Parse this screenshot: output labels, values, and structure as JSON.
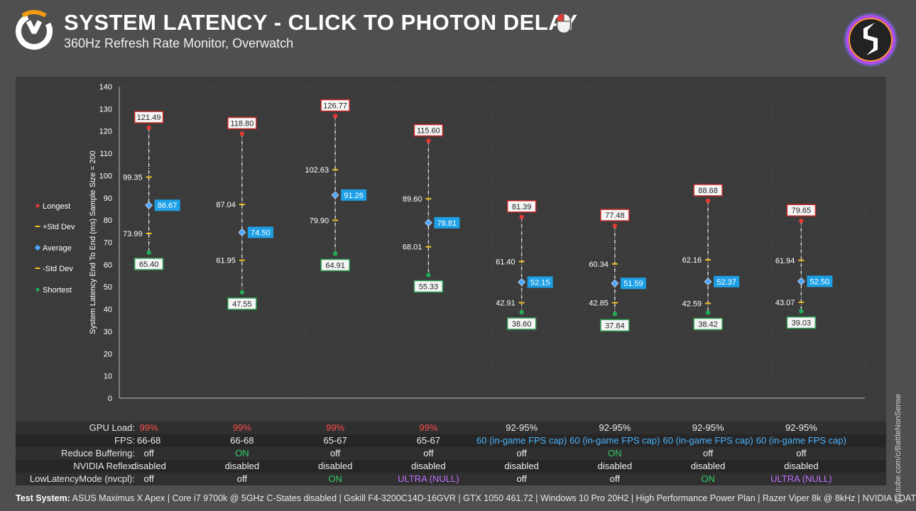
{
  "header": {
    "title": "SYSTEM LATENCY - CLICK TO PHOTON DELAY",
    "subtitle": "360Hz Refresh Rate Monitor, Overwatch"
  },
  "chart_data": {
    "type": "scatter",
    "ylabel": "System Latency End To End (ms) Sample Size = 200",
    "ylim": [
      0,
      140
    ],
    "yticks": [
      0,
      10,
      20,
      30,
      40,
      50,
      60,
      70,
      80,
      90,
      100,
      110,
      120,
      130,
      140
    ],
    "grid": true,
    "legend_position": "left",
    "legend": [
      {
        "name": "Longest",
        "color": "#e53935",
        "marker": "dot"
      },
      {
        "name": "+Std Dev",
        "color": "#f0c020",
        "marker": "dash"
      },
      {
        "name": "Average",
        "color": "#4da6ff",
        "marker": "diamond"
      },
      {
        "name": "-Std Dev",
        "color": "#f0c020",
        "marker": "dash"
      },
      {
        "name": "Shortest",
        "color": "#22aa55",
        "marker": "dot"
      }
    ],
    "series": [
      {
        "name": "Longest",
        "values": [
          "121.49",
          "118.80",
          "126.77",
          "115.60",
          "81.39",
          "77.48",
          "88.68",
          "79.65"
        ]
      },
      {
        "name": "+Std Dev",
        "values": [
          "99.35",
          "87.04",
          "102.63",
          "89.60",
          "61.40",
          "60.34",
          "62.16",
          "61.94"
        ]
      },
      {
        "name": "Average",
        "values": [
          "86.67",
          "74.50",
          "91.26",
          "78.81",
          "52.15",
          "51.59",
          "52.37",
          "52.50"
        ]
      },
      {
        "name": "-Std Dev",
        "values": [
          "73.99",
          "61.95",
          "79.90",
          "68.01",
          "42.91",
          "42.85",
          "42.59",
          "43.07"
        ]
      },
      {
        "name": "Shortest",
        "values": [
          "65.40",
          "47.55",
          "64.91",
          "55.33",
          "38.60",
          "37.84",
          "38.42",
          "39.03"
        ]
      }
    ]
  },
  "table": {
    "rows": [
      {
        "label": "GPU Load:",
        "cells": [
          {
            "parts": [
              {
                "text": "99%",
                "color": "red"
              }
            ]
          },
          {
            "parts": [
              {
                "text": "99%",
                "color": "red"
              }
            ]
          },
          {
            "parts": [
              {
                "text": "99%",
                "color": "red"
              }
            ]
          },
          {
            "parts": [
              {
                "text": "99%",
                "color": "red"
              }
            ]
          },
          {
            "parts": [
              {
                "text": "92-95%",
                "color": ""
              }
            ]
          },
          {
            "parts": [
              {
                "text": "92-95%",
                "color": ""
              }
            ]
          },
          {
            "parts": [
              {
                "text": "92-95%",
                "color": ""
              }
            ]
          },
          {
            "parts": [
              {
                "text": "92-95%",
                "color": ""
              }
            ]
          }
        ]
      },
      {
        "label": "FPS:",
        "cells": [
          {
            "parts": [
              {
                "text": "66-68",
                "color": ""
              }
            ]
          },
          {
            "parts": [
              {
                "text": "66-68",
                "color": ""
              }
            ]
          },
          {
            "parts": [
              {
                "text": "65-67",
                "color": ""
              }
            ]
          },
          {
            "parts": [
              {
                "text": "65-67",
                "color": ""
              }
            ]
          },
          {
            "parts": [
              {
                "text": "60 (in-game FPS cap)",
                "color": "blue"
              }
            ]
          },
          {
            "parts": [
              {
                "text": "60 (in-game FPS cap)",
                "color": "blue"
              }
            ]
          },
          {
            "parts": [
              {
                "text": "60 (in-game FPS cap)",
                "color": "blue"
              }
            ]
          },
          {
            "parts": [
              {
                "text": "60 (in-game FPS cap)",
                "color": "blue"
              }
            ]
          }
        ]
      },
      {
        "label": "Reduce Buffering:",
        "cells": [
          {
            "parts": [
              {
                "text": "off",
                "color": ""
              }
            ]
          },
          {
            "parts": [
              {
                "text": "ON",
                "color": "green"
              }
            ]
          },
          {
            "parts": [
              {
                "text": "off",
                "color": ""
              }
            ]
          },
          {
            "parts": [
              {
                "text": "off",
                "color": ""
              }
            ]
          },
          {
            "parts": [
              {
                "text": "off",
                "color": ""
              }
            ]
          },
          {
            "parts": [
              {
                "text": "ON",
                "color": "green"
              }
            ]
          },
          {
            "parts": [
              {
                "text": "off",
                "color": ""
              }
            ]
          },
          {
            "parts": [
              {
                "text": "off",
                "color": ""
              }
            ]
          }
        ]
      },
      {
        "label": "NVIDIA Reflex:",
        "cells": [
          {
            "parts": [
              {
                "text": "disabled",
                "color": ""
              }
            ]
          },
          {
            "parts": [
              {
                "text": "disabled",
                "color": ""
              }
            ]
          },
          {
            "parts": [
              {
                "text": "disabled",
                "color": ""
              }
            ]
          },
          {
            "parts": [
              {
                "text": "disabled",
                "color": ""
              }
            ]
          },
          {
            "parts": [
              {
                "text": "disabled",
                "color": ""
              }
            ]
          },
          {
            "parts": [
              {
                "text": "disabled",
                "color": ""
              }
            ]
          },
          {
            "parts": [
              {
                "text": "disabled",
                "color": ""
              }
            ]
          },
          {
            "parts": [
              {
                "text": "disabled",
                "color": ""
              }
            ]
          }
        ]
      },
      {
        "label": "LowLatencyMode (nvcpl):",
        "cells": [
          {
            "parts": [
              {
                "text": "off",
                "color": ""
              }
            ]
          },
          {
            "parts": [
              {
                "text": "off",
                "color": ""
              }
            ]
          },
          {
            "parts": [
              {
                "text": "ON",
                "color": "green"
              }
            ]
          },
          {
            "parts": [
              {
                "text": "ULTRA",
                "color": "purple"
              },
              {
                "text": " (NULL)",
                "color": "purple"
              }
            ]
          },
          {
            "parts": [
              {
                "text": "off",
                "color": ""
              }
            ]
          },
          {
            "parts": [
              {
                "text": "off",
                "color": ""
              }
            ]
          },
          {
            "parts": [
              {
                "text": "ON",
                "color": "green"
              }
            ]
          },
          {
            "parts": [
              {
                "text": "ULTRA",
                "color": "purple"
              },
              {
                "text": " (NULL)",
                "color": "purple"
              }
            ]
          }
        ]
      }
    ]
  },
  "footer": {
    "label": "Test System:",
    "text": " ASUS Maximus X Apex | Core i7 9700k @ 5GHz C-States disabled | Gskill F4-3200C14D-16GVR | GTX 1050 461.72 | Windows 10 Pro 20H2 | High Performance Power Plan | Razer Viper 8k @ 8kHz | NVIDIA LDAT"
  },
  "watermark": "youtube.com/c/BattleNonSense",
  "colors": {
    "longest": "#e53935",
    "stddev": "#f0c020",
    "average": "#4da6ff",
    "average_label_bg": "#1ea0e6",
    "shortest": "#22aa55",
    "longest_box": "#c62828",
    "shortest_box": "#2e9e50"
  },
  "icons": [
    "overwatch-logo-icon",
    "mouse-left-click-icon",
    "channel-logo-icon"
  ]
}
